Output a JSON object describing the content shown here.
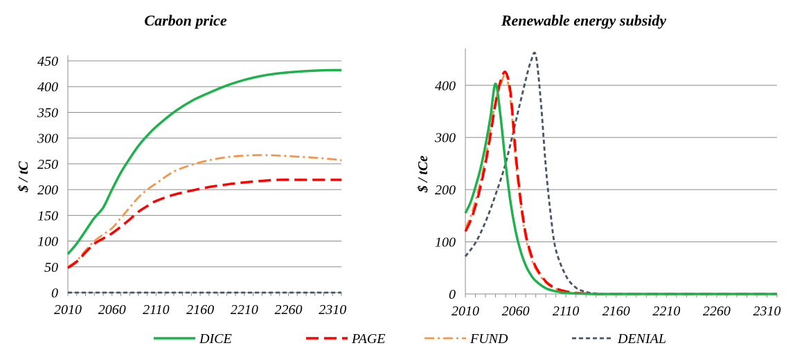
{
  "legend": [
    {
      "name": "DICE",
      "color": "#1fb14c",
      "dash": "",
      "width": 3.5
    },
    {
      "name": "PAGE",
      "color": "#ff0000",
      "dash": "18,8",
      "width": 3.5
    },
    {
      "name": "FUND",
      "color": "#f4964a",
      "dash": "14,5,3,5",
      "width": 2.8
    },
    {
      "name": "DENIAL",
      "color": "#44546a",
      "dash": "6,4",
      "width": 2.8
    }
  ],
  "chart_data": [
    {
      "type": "line",
      "title": "Carbon price",
      "xlabel": "",
      "ylabel": "$ / tC",
      "xlim": [
        2010,
        2320
      ],
      "ylim": [
        0,
        450
      ],
      "yticks": [
        0,
        50,
        100,
        150,
        200,
        250,
        300,
        350,
        400,
        450
      ],
      "xticks": [
        2010,
        2060,
        2110,
        2160,
        2210,
        2260,
        2310
      ],
      "grid": true,
      "series": [
        {
          "name": "DICE",
          "x": [
            2010,
            2020,
            2030,
            2040,
            2050,
            2060,
            2070,
            2080,
            2090,
            2100,
            2110,
            2130,
            2150,
            2170,
            2190,
            2210,
            2230,
            2250,
            2270,
            2290,
            2310,
            2320
          ],
          "y": [
            75,
            95,
            120,
            145,
            165,
            200,
            233,
            260,
            285,
            305,
            322,
            350,
            372,
            388,
            402,
            413,
            421,
            426,
            429,
            431,
            432,
            432
          ]
        },
        {
          "name": "PAGE",
          "x": [
            2010,
            2020,
            2030,
            2040,
            2050,
            2060,
            2070,
            2080,
            2090,
            2100,
            2110,
            2130,
            2150,
            2170,
            2190,
            2210,
            2230,
            2250,
            2270,
            2290,
            2310,
            2320
          ],
          "y": [
            48,
            60,
            78,
            95,
            105,
            115,
            128,
            142,
            157,
            168,
            178,
            190,
            198,
            205,
            210,
            214,
            217,
            219,
            219,
            219,
            219,
            219
          ]
        },
        {
          "name": "FUND",
          "x": [
            2010,
            2020,
            2030,
            2040,
            2050,
            2060,
            2070,
            2080,
            2090,
            2100,
            2110,
            2130,
            2150,
            2170,
            2190,
            2210,
            2230,
            2250,
            2270,
            2290,
            2310,
            2320
          ],
          "y": [
            50,
            62,
            82,
            100,
            113,
            125,
            145,
            165,
            185,
            200,
            212,
            235,
            248,
            257,
            263,
            266,
            267,
            266,
            264,
            262,
            259,
            257
          ]
        },
        {
          "name": "DENIAL",
          "x": [
            2010,
            2320
          ],
          "y": [
            0,
            0
          ]
        }
      ]
    },
    {
      "type": "line",
      "title": "Renewable energy subsidy",
      "xlabel": "",
      "ylabel": "$ / tCe",
      "xlim": [
        2010,
        2320
      ],
      "ylim": [
        0,
        460
      ],
      "yticks": [
        0,
        100,
        200,
        300,
        400
      ],
      "xticks": [
        2010,
        2060,
        2110,
        2160,
        2210,
        2260,
        2310
      ],
      "grid": true,
      "series": [
        {
          "name": "DICE",
          "x": [
            2010,
            2015,
            2020,
            2025,
            2030,
            2035,
            2040,
            2045,
            2050,
            2055,
            2060,
            2065,
            2070,
            2075,
            2080,
            2090,
            2100,
            2110,
            2120,
            2140,
            2160,
            2320
          ],
          "y": [
            155,
            175,
            205,
            240,
            285,
            340,
            403,
            340,
            250,
            175,
            120,
            82,
            55,
            37,
            25,
            11,
            5,
            2,
            1,
            0,
            0,
            0
          ]
        },
        {
          "name": "PAGE",
          "x": [
            2010,
            2015,
            2020,
            2025,
            2030,
            2035,
            2040,
            2045,
            2050,
            2055,
            2060,
            2065,
            2070,
            2075,
            2080,
            2090,
            2100,
            2110,
            2120,
            2140,
            2160,
            2320
          ],
          "y": [
            120,
            140,
            168,
            205,
            250,
            305,
            365,
            408,
            425,
            385,
            270,
            180,
            115,
            78,
            52,
            24,
            11,
            5,
            2,
            0,
            0,
            0
          ]
        },
        {
          "name": "FUND",
          "x": [
            2010,
            2015,
            2020,
            2025,
            2030,
            2035,
            2040,
            2045,
            2050,
            2055,
            2060,
            2065,
            2070,
            2075,
            2080,
            2090,
            2100,
            2110,
            2120,
            2140,
            2160,
            2320
          ],
          "y": [
            125,
            148,
            178,
            215,
            260,
            315,
            370,
            400,
            420,
            370,
            255,
            170,
            108,
            72,
            48,
            22,
            10,
            4,
            2,
            0,
            0,
            0
          ]
        },
        {
          "name": "DENIAL",
          "x": [
            2010,
            2020,
            2030,
            2040,
            2050,
            2060,
            2065,
            2070,
            2075,
            2080,
            2085,
            2090,
            2095,
            2100,
            2110,
            2120,
            2130,
            2140,
            2160,
            2320
          ],
          "y": [
            72,
            98,
            138,
            190,
            250,
            330,
            370,
            410,
            445,
            458,
            370,
            245,
            150,
            85,
            35,
            12,
            4,
            1,
            0,
            0
          ]
        }
      ]
    }
  ]
}
